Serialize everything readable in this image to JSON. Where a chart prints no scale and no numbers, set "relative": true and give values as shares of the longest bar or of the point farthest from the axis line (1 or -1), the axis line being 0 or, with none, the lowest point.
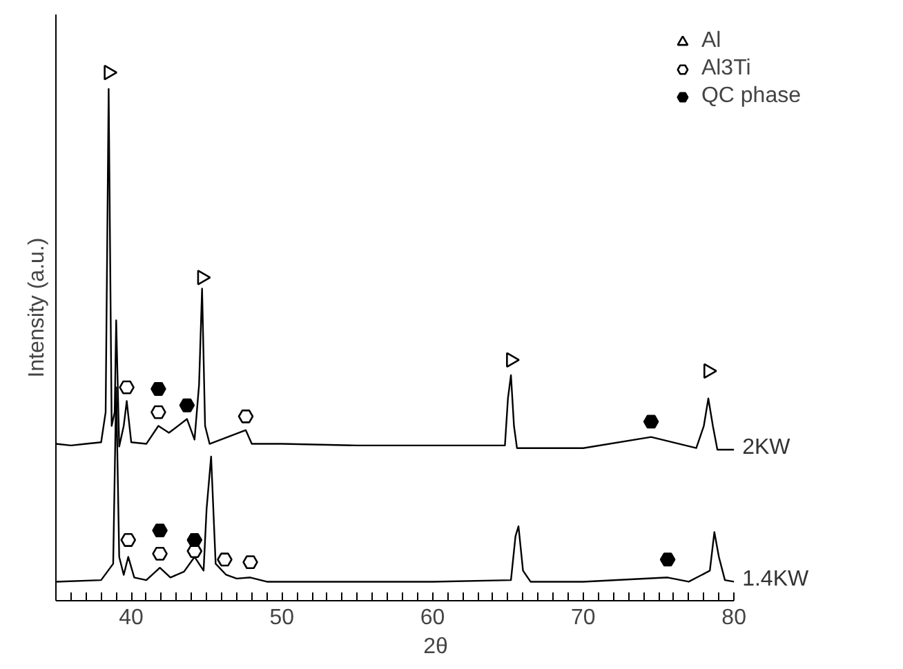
{
  "chart_data": {
    "type": "line",
    "xlabel": "2θ",
    "ylabel": "Intensity (a.u.)",
    "relative": true,
    "xlim": [
      35,
      80
    ],
    "xticks": [
      {
        "value": 36,
        "label": null
      },
      {
        "value": 37,
        "label": null
      },
      {
        "value": 38,
        "label": null
      },
      {
        "value": 39,
        "label": null
      },
      40,
      {
        "value": 41,
        "label": null
      },
      {
        "value": 42,
        "label": null
      },
      {
        "value": 43,
        "label": null
      },
      {
        "value": 44,
        "label": null
      },
      {
        "value": 45,
        "label": null
      },
      {
        "value": 46,
        "label": null
      },
      {
        "value": 47,
        "label": null
      },
      {
        "value": 48,
        "label": null
      },
      {
        "value": 49,
        "label": null
      },
      50,
      {
        "value": 51,
        "label": null
      },
      {
        "value": 52,
        "label": null
      },
      {
        "value": 53,
        "label": null
      },
      {
        "value": 54,
        "label": null
      },
      {
        "value": 55,
        "label": null
      },
      {
        "value": 56,
        "label": null
      },
      {
        "value": 57,
        "label": null
      },
      {
        "value": 58,
        "label": null
      },
      {
        "value": 59,
        "label": null
      },
      60,
      {
        "value": 61,
        "label": null
      },
      {
        "value": 62,
        "label": null
      },
      {
        "value": 63,
        "label": null
      },
      {
        "value": 64,
        "label": null
      },
      {
        "value": 65,
        "label": null
      },
      {
        "value": 66,
        "label": null
      },
      {
        "value": 67,
        "label": null
      },
      {
        "value": 68,
        "label": null
      },
      {
        "value": 69,
        "label": null
      },
      70,
      {
        "value": 71,
        "label": null
      },
      {
        "value": 72,
        "label": null
      },
      {
        "value": 73,
        "label": null
      },
      {
        "value": 74,
        "label": null
      },
      {
        "value": 75,
        "label": null
      },
      {
        "value": 76,
        "label": null
      },
      {
        "value": 77,
        "label": null
      },
      {
        "value": 78,
        "label": null
      },
      {
        "value": 79,
        "label": null
      },
      80
    ],
    "tick_labels": "x",
    "grid": false,
    "legend": "top right",
    "marker": "none",
    "line_style": "solid",
    "series": [
      {
        "name": "2KW",
        "color": "#000000",
        "x": [
          35,
          36,
          37,
          38,
          38.3,
          38.5,
          38.7,
          38.9,
          39.0,
          39.2,
          39.5,
          39.7,
          40.0,
          41,
          41.8,
          42.5,
          43.7,
          44.2,
          44.5,
          44.7,
          44.9,
          45.2,
          47.6,
          48,
          50,
          55,
          60,
          64.8,
          65.0,
          65.2,
          65.4,
          65.6,
          70,
          74.5,
          77.5,
          78.0,
          78.3,
          78.6,
          78.9,
          80
        ],
        "values": [
          0.297,
          0.294,
          0.297,
          0.3,
          0.357,
          0.969,
          0.331,
          0.357,
          0.531,
          0.292,
          0.331,
          0.378,
          0.3,
          0.297,
          0.331,
          0.318,
          0.344,
          0.305,
          0.409,
          0.591,
          0.331,
          0.297,
          0.323,
          0.297,
          0.297,
          0.294,
          0.294,
          0.294,
          0.383,
          0.427,
          0.331,
          0.289,
          0.289,
          0.31,
          0.289,
          0.331,
          0.383,
          0.331,
          0.286,
          0.286
        ]
      },
      {
        "name": "1.4KW",
        "color": "#000000",
        "x": [
          35,
          38,
          38.8,
          39.0,
          39.2,
          39.5,
          39.8,
          40.2,
          41.0,
          41.9,
          42.6,
          43.5,
          44.2,
          44.8,
          45.0,
          45.3,
          45.6,
          46.3,
          47.0,
          47.9,
          49,
          55,
          60,
          65.2,
          65.5,
          65.7,
          66.0,
          66.5,
          70,
          75.6,
          77,
          78.4,
          78.7,
          79.0,
          79.4,
          80
        ],
        "values": [
          0.036,
          0.039,
          0.07,
          0.404,
          0.083,
          0.049,
          0.083,
          0.044,
          0.039,
          0.0625,
          0.044,
          0.055,
          0.083,
          0.057,
          0.174,
          0.273,
          0.07,
          0.049,
          0.042,
          0.044,
          0.036,
          0.036,
          0.036,
          0.039,
          0.122,
          0.141,
          0.057,
          0.036,
          0.036,
          0.044,
          0.036,
          0.057,
          0.13,
          0.083,
          0.039,
          0.036
        ]
      },
      {
        "name": "Al",
        "type": "scatter",
        "marker": "triangle",
        "color": "#000000",
        "x": [
          38.5,
          44.7,
          65.2,
          78.3
        ],
        "values": [
          1.0,
          0.612,
          0.456,
          0.435
        ]
      },
      {
        "name": "Al3Ti",
        "type": "scatter",
        "color": "#000000",
        "x": [
          39.7,
          41.8,
          47.6,
          39.8,
          41.9,
          44.2,
          46.2,
          47.9
        ],
        "values": [
          0.404,
          0.357,
          0.349,
          0.115,
          0.089,
          0.094,
          0.078,
          0.073
        ]
      },
      {
        "name": "QC phase",
        "type": "scatter",
        "color": "#000000",
        "x": [
          41.8,
          43.7,
          74.5,
          41.9,
          44.2,
          75.6
        ],
        "values": [
          0.401,
          0.37,
          0.339,
          0.133,
          0.115,
          0.078
        ]
      }
    ]
  }
}
